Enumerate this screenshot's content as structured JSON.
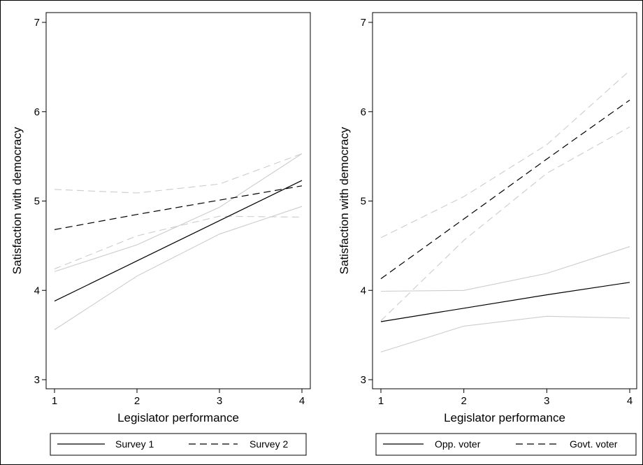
{
  "figure": {
    "background": "#ffffff",
    "frame_color": "#000000"
  },
  "chart_data": [
    {
      "type": "line",
      "xlabel": "Legislator performance",
      "ylabel": "Satisfaction with democracy",
      "xlim": [
        1,
        4
      ],
      "ylim": [
        3,
        7
      ],
      "xticks": [
        1,
        2,
        3,
        4
      ],
      "yticks": [
        3,
        4,
        5,
        6,
        7
      ],
      "grid": false,
      "legend_position": "bottom",
      "series": [
        {
          "name": "Survey 1",
          "style": "solid",
          "color": "#000000",
          "x": [
            1,
            2,
            3,
            4
          ],
          "y": [
            3.88,
            4.33,
            4.78,
            5.23
          ]
        },
        {
          "name": "Survey 2",
          "style": "dashed",
          "color": "#000000",
          "x": [
            1,
            2,
            3,
            4
          ],
          "y": [
            4.68,
            4.85,
            5.01,
            5.17
          ]
        },
        {
          "style": "solid",
          "color": "#cccccc",
          "x": [
            1,
            2,
            3,
            4
          ],
          "y": [
            3.56,
            4.16,
            4.63,
            4.94
          ]
        },
        {
          "style": "solid",
          "color": "#cccccc",
          "x": [
            1,
            2,
            3,
            4
          ],
          "y": [
            4.21,
            4.51,
            4.93,
            5.53
          ]
        },
        {
          "style": "dashed",
          "color": "#cccccc",
          "x": [
            1,
            2,
            3,
            4
          ],
          "y": [
            4.24,
            4.61,
            4.83,
            4.82
          ]
        },
        {
          "style": "dashed",
          "color": "#cccccc",
          "x": [
            1,
            2,
            3,
            4
          ],
          "y": [
            5.13,
            5.09,
            5.19,
            5.53
          ]
        }
      ]
    },
    {
      "type": "line",
      "xlabel": "Legislator performance",
      "ylabel": "Satisfaction with democracy",
      "xlim": [
        1,
        4
      ],
      "ylim": [
        3,
        7
      ],
      "xticks": [
        1,
        2,
        3,
        4
      ],
      "yticks": [
        3,
        4,
        5,
        6,
        7
      ],
      "grid": false,
      "legend_position": "bottom",
      "series": [
        {
          "name": "Opp. voter",
          "style": "solid",
          "color": "#000000",
          "x": [
            1,
            2,
            3,
            4
          ],
          "y": [
            3.65,
            3.8,
            3.95,
            4.09
          ]
        },
        {
          "name": "Govt. voter",
          "style": "dashed",
          "color": "#000000",
          "x": [
            1,
            2,
            3,
            4
          ],
          "y": [
            4.13,
            4.8,
            5.47,
            6.13
          ]
        },
        {
          "style": "solid",
          "color": "#cccccc",
          "x": [
            1,
            2,
            3,
            4
          ],
          "y": [
            3.31,
            3.6,
            3.71,
            3.69
          ]
        },
        {
          "style": "solid",
          "color": "#cccccc",
          "x": [
            1,
            2,
            3,
            4
          ],
          "y": [
            3.99,
            4.0,
            4.19,
            4.49
          ]
        },
        {
          "style": "dashed",
          "color": "#cccccc",
          "x": [
            1,
            2,
            3,
            4
          ],
          "y": [
            3.66,
            4.56,
            5.31,
            5.83
          ]
        },
        {
          "style": "dashed",
          "color": "#cccccc",
          "x": [
            1,
            2,
            3,
            4
          ],
          "y": [
            4.59,
            5.05,
            5.63,
            6.46
          ]
        }
      ]
    }
  ]
}
